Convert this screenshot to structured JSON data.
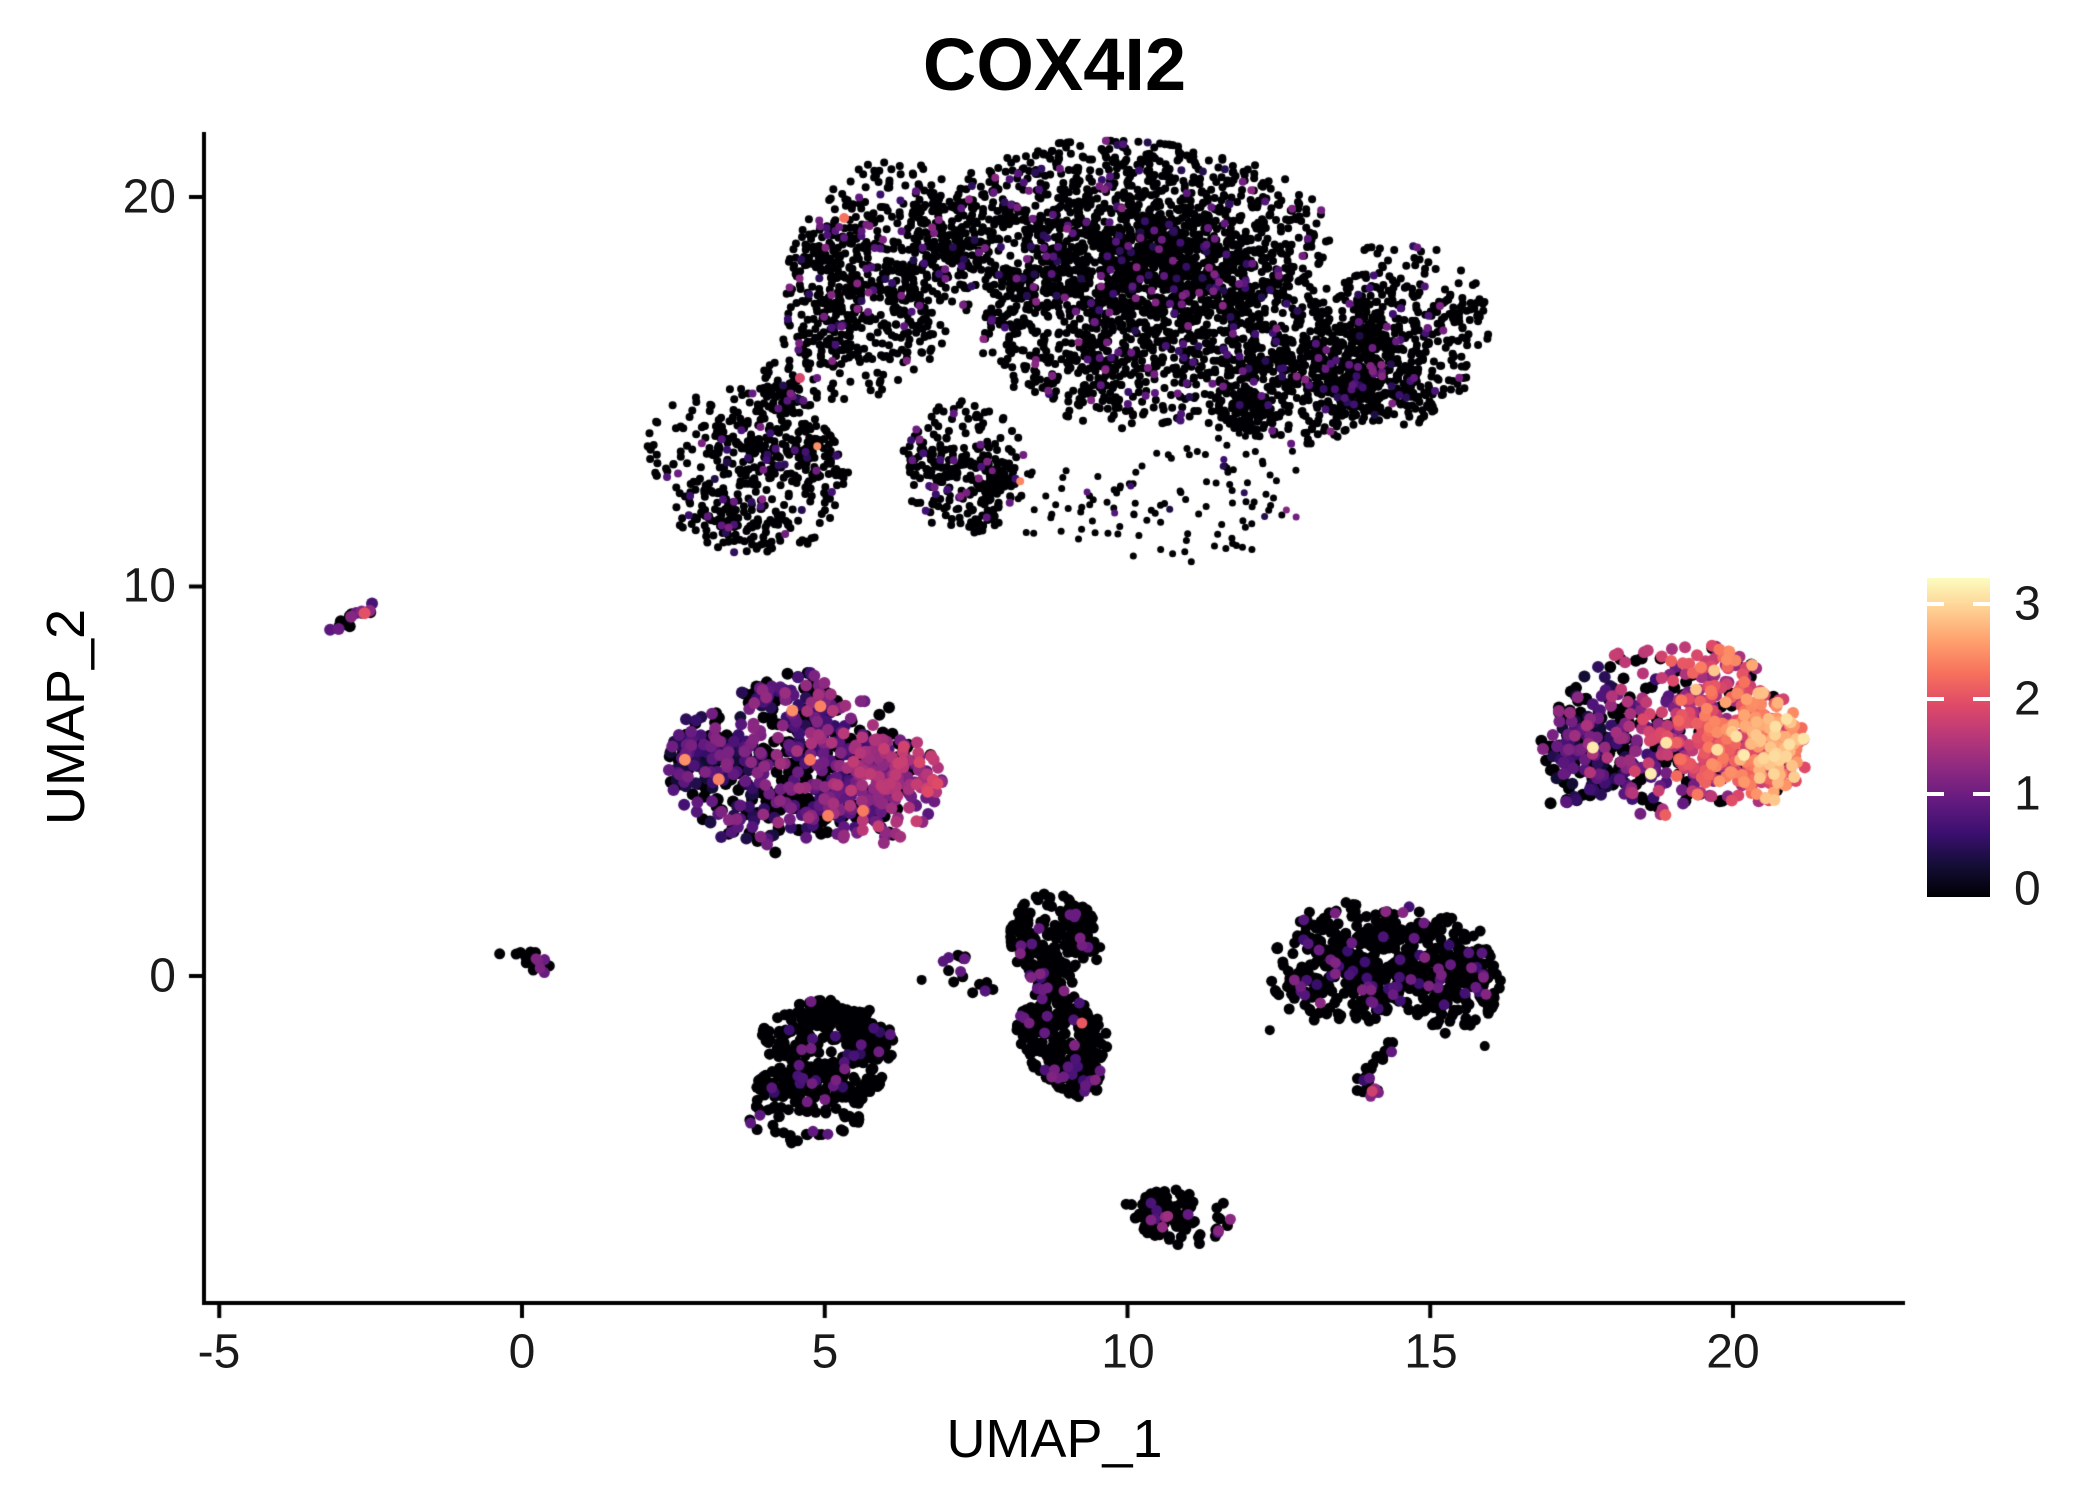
{
  "title": "COX4I2",
  "axes": {
    "x_label": "UMAP_1",
    "y_label": "UMAP_2",
    "x_ticks": [
      "-5",
      "0",
      "5",
      "10",
      "15",
      "20"
    ],
    "x_tick_values": [
      -5,
      0,
      5,
      10,
      15,
      20
    ],
    "y_ticks": [
      "20",
      "10",
      "0"
    ],
    "y_tick_values": [
      20,
      10,
      0
    ],
    "xlim": [
      -5.25,
      22.85
    ],
    "ylim": [
      -8.4,
      21.7
    ]
  },
  "colorbar": {
    "tick_labels": [
      "3",
      "2",
      "1",
      "0"
    ],
    "tick_values": [
      3,
      2,
      1,
      0
    ],
    "value_range": [
      0,
      3.27
    ],
    "palette": [
      {
        "t": 0.0,
        "color": "#000004"
      },
      {
        "t": 0.1,
        "color": "#140e36"
      },
      {
        "t": 0.2,
        "color": "#3b0f70"
      },
      {
        "t": 0.3,
        "color": "#641a80"
      },
      {
        "t": 0.4,
        "color": "#8c2981"
      },
      {
        "t": 0.5,
        "color": "#b73779"
      },
      {
        "t": 0.6,
        "color": "#de4968"
      },
      {
        "t": 0.7,
        "color": "#f7705c"
      },
      {
        "t": 0.8,
        "color": "#fe9f6d"
      },
      {
        "t": 0.9,
        "color": "#fecf92"
      },
      {
        "t": 1.0,
        "color": "#fcfdbf"
      }
    ]
  },
  "chart_data": {
    "type": "scatter",
    "title": "COX4I2",
    "xlabel": "UMAP_1",
    "ylabel": "UMAP_2",
    "xlim": [
      -5.25,
      22.85
    ],
    "ylim": [
      -8.4,
      21.7
    ],
    "grid": false,
    "legend_position": "right",
    "color_scale": "magma",
    "expression_range": [
      0,
      3.27
    ],
    "point_style": "filled-circle",
    "expr_profiles": {
      "bigLow": {
        "p_zero": 0.93,
        "v_mean": 0.85,
        "v_spread": 0.45,
        "hot": {
          "p": 0.004,
          "v0": 1.8,
          "v1": 2.6
        }
      },
      "midLeft": {
        "gradient": {
          "x0": 2.5,
          "x1": 7.0,
          "p0_0": 0.55,
          "p0_1": 0.22,
          "v0": 0.55,
          "v1": 1.5,
          "spread": 0.55
        },
        "hot": {
          "p": 0.01,
          "v0": 2.2,
          "v1": 2.6
        }
      },
      "orange": {
        "gradient": {
          "x0": 16.9,
          "x1": 20.8,
          "p0_0": 0.5,
          "p0_1": 0.1,
          "v0": 0.5,
          "v1": 2.35,
          "spread": 0.75
        },
        "hot": {
          "p": 0.02,
          "v0": 2.8,
          "v1": 3.2
        }
      },
      "midv": {
        "p_zero": 0.91,
        "v_mean": 0.95,
        "v_spread": 0.3,
        "hot": {
          "p": 0.012,
          "v0": 1.8,
          "v1": 2.2
        }
      },
      "lowleft": {
        "p_zero": 0.94,
        "v_mean": 0.85,
        "v_spread": 0.3,
        "hot": {
          "p": 0.006,
          "v0": 1.4,
          "v1": 1.6
        }
      },
      "rightmid": {
        "p_zero": 0.9,
        "v_mean": 0.95,
        "v_spread": 0.35,
        "hot": {
          "p": 0.01,
          "v0": 1.8,
          "v1": 2.1
        }
      },
      "crescent": {
        "p_zero": 0.92,
        "v_mean": 1.1,
        "v_spread": 0.4
      },
      "streak": {
        "p_zero": 0.45,
        "v_mean": 1.1,
        "v_spread": 0.4,
        "hot": {
          "p": 0.08,
          "v0": 2.0,
          "v1": 2.2
        }
      },
      "tiny0": {
        "p_zero": 0.72,
        "v_mean": 1.0,
        "v_spread": 0.25
      },
      "small7": {
        "p_zero": 0.8,
        "v_mean": 0.95,
        "v_spread": 0.2
      },
      "hookfoot": {
        "p_zero": 0.55,
        "v_mean": 1.4,
        "v_spread": 0.5
      },
      "tail": {
        "p_zero": 0.35,
        "v_mean": 0.9,
        "v_spread": 0.5
      }
    },
    "clusters": [
      {
        "name": "big-top-lobe-left",
        "type": "ellipse",
        "c": [
          5.91,
          17.87
        ],
        "rx": 1.49,
        "ry": 3.08,
        "rot": -10,
        "n": 750,
        "pr": 4,
        "expr": "bigLow"
      },
      {
        "name": "big-top-band",
        "type": "ellipse",
        "c": [
          9.88,
          19.15
        ],
        "rx": 3.3,
        "ry": 2.18,
        "rot": -4,
        "n": 1500,
        "pr": 4,
        "expr": "bigLow"
      },
      {
        "name": "big-top-right-lobe",
        "type": "ellipse",
        "c": [
          14.5,
          16.58
        ],
        "rx": 1.49,
        "ry": 2.31,
        "rot": 0,
        "n": 600,
        "pr": 4,
        "expr": "bigLow"
      },
      {
        "name": "big-top-central",
        "type": "ellipse",
        "c": [
          10.37,
          16.58
        ],
        "rx": 2.97,
        "ry": 2.44,
        "rot": -15,
        "n": 1250,
        "pr": 4,
        "expr": "bigLow"
      },
      {
        "name": "big-top-lower-left",
        "type": "ellipse",
        "c": [
          3.68,
          12.99
        ],
        "rx": 1.57,
        "ry": 2.18,
        "rot": 20,
        "n": 520,
        "pr": 4,
        "expr": "bigLow"
      },
      {
        "name": "big-top-bottom-tail",
        "type": "ellipse",
        "c": [
          7.32,
          13.12
        ],
        "rx": 0.99,
        "ry": 1.67,
        "rot": 0,
        "n": 300,
        "pr": 4,
        "expr": "bigLow"
      },
      {
        "name": "big-top-nose",
        "type": "ellipse",
        "c": [
          4.43,
          15.04
        ],
        "rx": 0.74,
        "ry": 0.77,
        "rot": 25,
        "n": 90,
        "pr": 4,
        "expr": "bigLow"
      },
      {
        "name": "big-top-right-bridge",
        "type": "ellipse",
        "c": [
          12.85,
          15.04
        ],
        "rx": 1.32,
        "ry": 1.41,
        "rot": -20,
        "n": 480,
        "pr": 4,
        "expr": "bigLow"
      },
      {
        "name": "big-top-wisp",
        "type": "ellipse",
        "c": [
          11.36,
          12.22
        ],
        "rx": 1.49,
        "ry": 2.05,
        "rot": -40,
        "n": 80,
        "pr": 3.5,
        "expr": "bigLow",
        "sparse": true
      },
      {
        "name": "big-top-under-edge",
        "type": "ellipse",
        "c": [
          8.88,
          12.09
        ],
        "rx": 1.9,
        "ry": 0.9,
        "rot": -10,
        "n": 55,
        "pr": 3.5,
        "expr": "bigLow",
        "sparse": true
      },
      {
        "name": "mid-left-main",
        "type": "ellipse",
        "c": [
          4.59,
          5.42
        ],
        "rx": 2.06,
        "ry": 2.18,
        "rot": -10,
        "n": 520,
        "pr": 6,
        "expr": "midLeft"
      },
      {
        "name": "mid-left-right-ext",
        "type": "ellipse",
        "c": [
          5.99,
          4.77
        ],
        "rx": 0.91,
        "ry": 1.41,
        "rot": 0,
        "n": 210,
        "pr": 6,
        "expr": "midLeft"
      },
      {
        "name": "mid-left-top-bump",
        "type": "ellipse",
        "c": [
          4.51,
          7.16
        ],
        "rx": 0.66,
        "ry": 0.67,
        "rot": 0,
        "n": 70,
        "pr": 6,
        "expr": "midLeft"
      },
      {
        "name": "mid-left-left-tip",
        "type": "ellipse",
        "c": [
          3.06,
          5.85
        ],
        "rx": 0.5,
        "ry": 1.08,
        "rot": 0,
        "n": 60,
        "pr": 6,
        "expr": "midLeft"
      },
      {
        "name": "left-streak",
        "type": "line",
        "from": [
          -3.17,
          8.81
        ],
        "to": [
          -2.51,
          9.45
        ],
        "jitter": 0.09,
        "n": 16,
        "pr": 6,
        "expr": "streak"
      },
      {
        "name": "origin-streak",
        "type": "line",
        "from": [
          -0.31,
          0.85
        ],
        "to": [
          0.51,
          0.15
        ],
        "jitter": 0.12,
        "n": 20,
        "pr": 5.5,
        "expr": "tiny0"
      },
      {
        "name": "small-seven-a",
        "type": "ellipse",
        "c": [
          7.15,
          0.36
        ],
        "rx": 0.22,
        "ry": 0.28,
        "rot": 0,
        "n": 9,
        "pr": 5.5,
        "expr": "small7",
        "sparse": true
      },
      {
        "name": "small-seven-b",
        "type": "ellipse",
        "c": [
          7.51,
          -0.15
        ],
        "rx": 0.4,
        "ry": 0.4,
        "rot": 0,
        "n": 8,
        "pr": 5.5,
        "expr": "small7",
        "sparse": true
      },
      {
        "name": "mid-vertical-upper",
        "type": "ellipse",
        "c": [
          8.8,
          0.92
        ],
        "rx": 0.69,
        "ry": 1.23,
        "rot": 5,
        "n": 230,
        "pr": 5.5,
        "expr": "midv"
      },
      {
        "name": "mid-vertical-lower",
        "type": "ellipse",
        "c": [
          8.97,
          -1.77
        ],
        "rx": 0.74,
        "ry": 1.28,
        "rot": 10,
        "n": 280,
        "pr": 5.5,
        "expr": "midv"
      },
      {
        "name": "mid-vertical-bridge",
        "type": "ellipse",
        "c": [
          8.85,
          -0.49
        ],
        "rx": 0.41,
        "ry": 0.56,
        "rot": 0,
        "n": 45,
        "pr": 5.5,
        "expr": "midv"
      },
      {
        "name": "lower-left-upper",
        "type": "ellipse",
        "c": [
          5.09,
          -1.59
        ],
        "rx": 1.07,
        "ry": 0.92,
        "rot": -5,
        "n": 230,
        "pr": 5.5,
        "expr": "lowleft"
      },
      {
        "name": "lower-left-lower",
        "type": "ellipse",
        "c": [
          4.69,
          -3.34
        ],
        "rx": 0.96,
        "ry": 1.08,
        "rot": -20,
        "n": 190,
        "pr": 5.5,
        "expr": "lowleft"
      },
      {
        "name": "lower-left-bridge",
        "type": "ellipse",
        "c": [
          5.5,
          -2.46
        ],
        "rx": 0.46,
        "ry": 0.56,
        "rot": 0,
        "n": 40,
        "pr": 5.5,
        "expr": "lowleft"
      },
      {
        "name": "right-mid-left-lobe",
        "type": "ellipse",
        "c": [
          13.59,
          0.28
        ],
        "rx": 1.19,
        "ry": 1.59,
        "rot": 0,
        "n": 340,
        "pr": 5.5,
        "expr": "rightmid"
      },
      {
        "name": "right-mid-right-lobe",
        "type": "ellipse",
        "c": [
          15.26,
          0.03
        ],
        "rx": 0.86,
        "ry": 1.49,
        "rot": 0,
        "n": 270,
        "pr": 5.5,
        "expr": "rightmid"
      },
      {
        "name": "right-mid-top-bridge",
        "type": "ellipse",
        "c": [
          14.47,
          1.23
        ],
        "rx": 0.69,
        "ry": 0.62,
        "rot": 0,
        "n": 70,
        "pr": 5.5,
        "expr": "rightmid"
      },
      {
        "name": "right-mid-hook",
        "type": "line",
        "from": [
          14.37,
          -1.64
        ],
        "to": [
          13.87,
          -2.72
        ],
        "jitter": 0.09,
        "n": 16,
        "pr": 5.5,
        "expr": "rightmid"
      },
      {
        "name": "right-mid-hook-foot",
        "type": "line",
        "from": [
          13.76,
          -2.93
        ],
        "to": [
          14.3,
          -3.0
        ],
        "jitter": 0.07,
        "n": 12,
        "pr": 5.5,
        "expr": "hookfoot"
      },
      {
        "name": "bottom-crescent",
        "type": "ellipse",
        "c": [
          10.92,
          -6.21
        ],
        "rx": 0.96,
        "ry": 0.69,
        "rot": -18,
        "n": 135,
        "pr": 5.5,
        "expr": "crescent"
      },
      {
        "name": "right-hot-main",
        "type": "ellipse",
        "c": [
          18.84,
          6.32
        ],
        "rx": 1.9,
        "ry": 2.21,
        "rot": -12,
        "n": 640,
        "pr": 6,
        "expr": "orange"
      },
      {
        "name": "right-hot-right-ext",
        "type": "ellipse",
        "c": [
          20.4,
          5.93
        ],
        "rx": 0.83,
        "ry": 1.54,
        "rot": 0,
        "n": 210,
        "pr": 6,
        "expr": "orange"
      },
      {
        "name": "right-hot-left-tail",
        "type": "line",
        "from": [
          17.8,
          5.03
        ],
        "to": [
          17.1,
          4.18
        ],
        "jitter": 0.1,
        "n": 16,
        "pr": 6,
        "expr": "tail"
      }
    ],
    "outliers": [
      {
        "x": 8.11,
        "y": 0.87,
        "v": 0
      },
      {
        "x": 9.55,
        "y": 0.74,
        "v": 0
      },
      {
        "x": 12.35,
        "y": -1.39,
        "v": 0
      },
      {
        "x": 15.9,
        "y": -1.8,
        "v": 0
      },
      {
        "x": 6.6,
        "y": -0.1,
        "v": 0
      },
      {
        "x": 16.0,
        "y": 0.5,
        "v": 0
      },
      {
        "x": 5.32,
        "y": 19.46,
        "v": 2.3
      },
      {
        "x": 4.59,
        "y": 15.35,
        "v": 1.9
      }
    ]
  }
}
